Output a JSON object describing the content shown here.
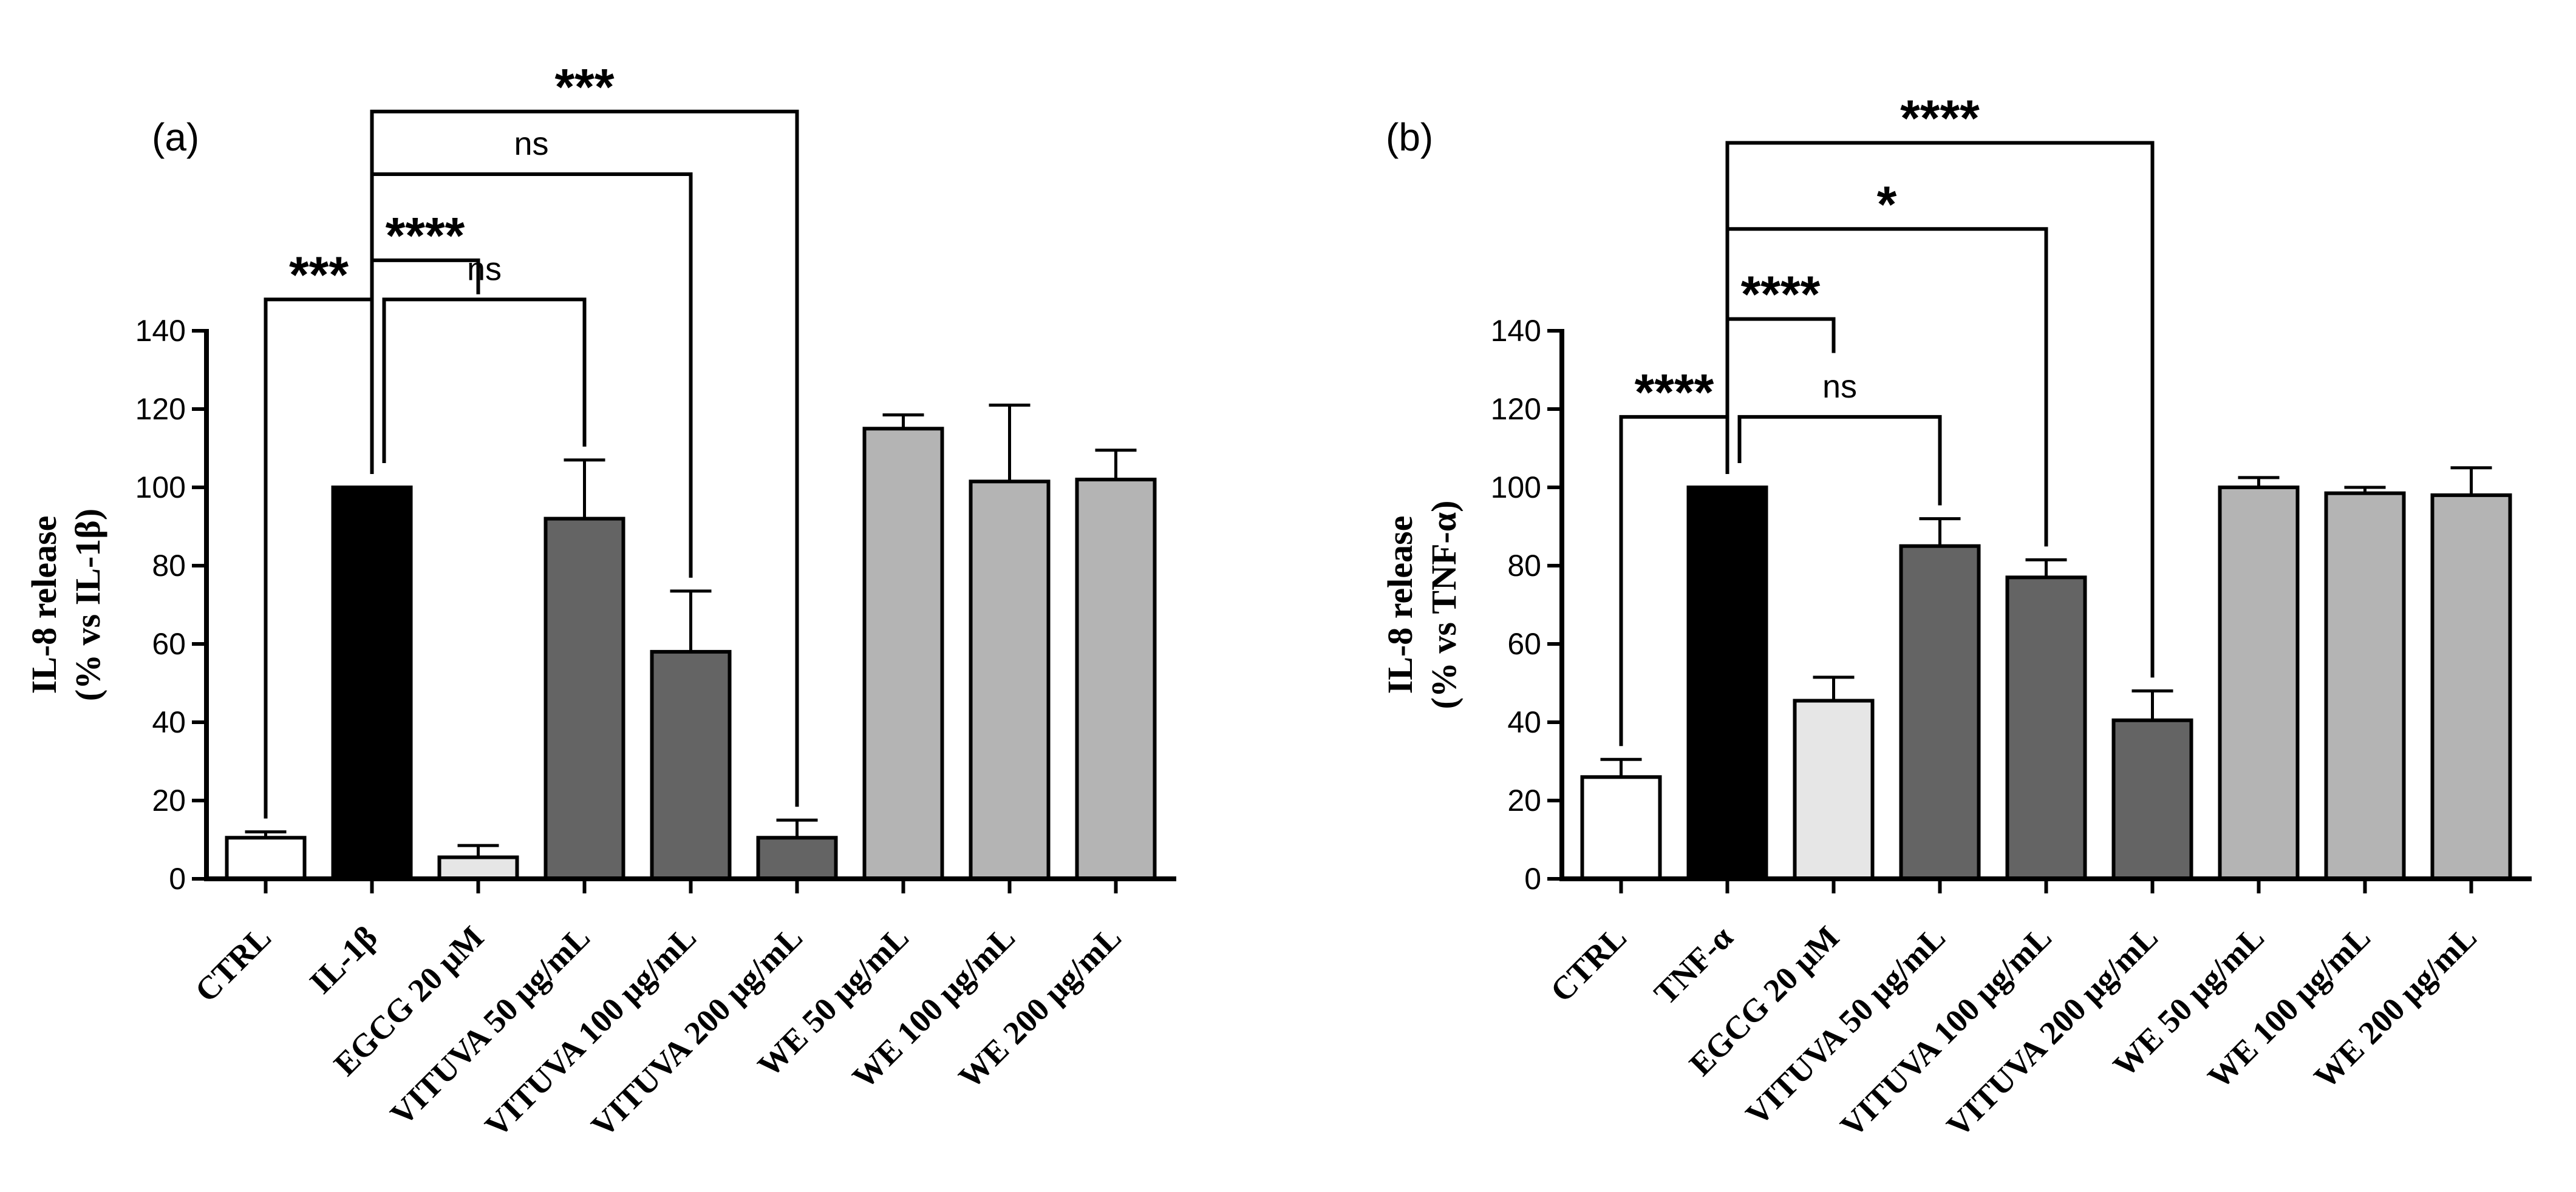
{
  "chart_data": [
    {
      "type": "bar",
      "panel_label": "(a)",
      "ylabel_line1": "IL-8 release",
      "ylabel_line2": "(% vs IL-1β)",
      "ylim": [
        0,
        140
      ],
      "yticks": [
        0,
        20,
        40,
        60,
        80,
        100,
        120,
        140
      ],
      "categories": [
        "CTRL",
        "IL-1β",
        "EGCG 20 μM",
        "VITUVA 50 μg/mL",
        "VITUVA 100 μg/mL",
        "VITUVA 200 μg/mL",
        "WE 50 μg/mL",
        "WE 100 μg/mL",
        "WE 200 μg/mL"
      ],
      "values": [
        10.5,
        100,
        5.5,
        92,
        58,
        10.5,
        115,
        101.5,
        102
      ],
      "errors": [
        1.5,
        0,
        3,
        15,
        15.5,
        4.5,
        3.5,
        19.5,
        7.5
      ],
      "colors": [
        "#ffffff",
        "#000000",
        "#e6e6e6",
        "#646464",
        "#646464",
        "#646464",
        "#b4b4b4",
        "#b4b4b4",
        "#b4b4b4"
      ],
      "significance": [
        {
          "from": 0,
          "to": 1,
          "label": "***",
          "level": 148
        },
        {
          "from": 1,
          "to": 3,
          "label": "ns",
          "level": 148
        },
        {
          "from": 1,
          "to": 2,
          "label": "****",
          "level": 158
        },
        {
          "from": 1,
          "to": 4,
          "label": "ns",
          "level": 180
        },
        {
          "from": 1,
          "to": 5,
          "label": "***",
          "level": 196
        }
      ]
    },
    {
      "type": "bar",
      "panel_label": "(b)",
      "ylabel_line1": "IL-8 release",
      "ylabel_line2": "(% vs TNF-α)",
      "ylim": [
        0,
        140
      ],
      "yticks": [
        0,
        20,
        40,
        60,
        80,
        100,
        120,
        140
      ],
      "categories": [
        "CTRL",
        "TNF-α",
        "EGCG 20 μM",
        "VITUVA 50 μg/mL",
        "VITUVA 100 μg/mL",
        "VITUVA 200 μg/mL",
        "WE 50 μg/mL",
        "WE 100 μg/mL",
        "WE 200 μg/mL"
      ],
      "values": [
        26,
        100,
        45.5,
        85,
        77,
        40.5,
        100,
        98.5,
        98
      ],
      "errors": [
        4.5,
        0,
        6,
        7,
        4.5,
        7.5,
        2.5,
        1.5,
        7
      ],
      "colors": [
        "#ffffff",
        "#000000",
        "#e6e6e6",
        "#646464",
        "#646464",
        "#646464",
        "#b4b4b4",
        "#b4b4b4",
        "#b4b4b4"
      ],
      "significance": [
        {
          "from": 0,
          "to": 1,
          "label": "****",
          "level": 118
        },
        {
          "from": 1,
          "to": 3,
          "label": "ns",
          "level": 118
        },
        {
          "from": 1,
          "to": 2,
          "label": "****",
          "level": 143
        },
        {
          "from": 1,
          "to": 4,
          "label": "*",
          "level": 166
        },
        {
          "from": 1,
          "to": 5,
          "label": "****",
          "level": 188
        }
      ]
    }
  ]
}
